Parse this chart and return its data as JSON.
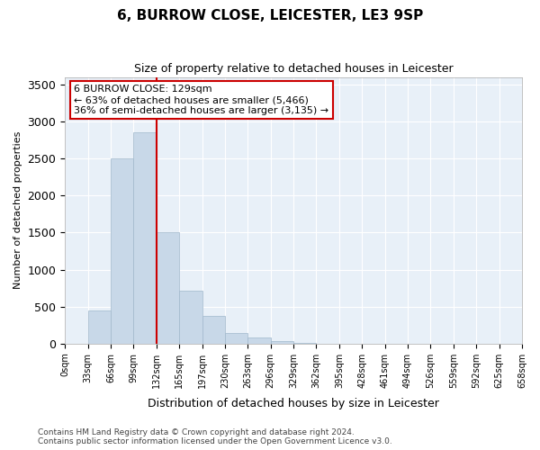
{
  "title": "6, BURROW CLOSE, LEICESTER, LE3 9SP",
  "subtitle": "Size of property relative to detached houses in Leicester",
  "xlabel": "Distribution of detached houses by size in Leicester",
  "ylabel": "Number of detached properties",
  "bar_color": "#c8d8e8",
  "bar_edge_color": "#a0b8cc",
  "vline_color": "#cc0000",
  "vline_x": 4,
  "annotation_title": "6 BURROW CLOSE: 129sqm",
  "annotation_line1": "← 63% of detached houses are smaller (5,466)",
  "annotation_line2": "36% of semi-detached houses are larger (3,135) →",
  "annotation_box_color": "#cc0000",
  "bins": [
    "0sqm",
    "33sqm",
    "66sqm",
    "99sqm",
    "132sqm",
    "165sqm",
    "197sqm",
    "230sqm",
    "263sqm",
    "296sqm",
    "329sqm",
    "362sqm",
    "395sqm",
    "428sqm",
    "461sqm",
    "494sqm",
    "526sqm",
    "559sqm",
    "592sqm",
    "625sqm",
    "658sqm"
  ],
  "values": [
    0,
    450,
    2500,
    2850,
    1500,
    720,
    380,
    145,
    85,
    40,
    5,
    2,
    0,
    0,
    0,
    0,
    0,
    0,
    0,
    0
  ],
  "ylim": [
    0,
    3600
  ],
  "yticks": [
    0,
    500,
    1000,
    1500,
    2000,
    2500,
    3000,
    3500
  ],
  "footer_line1": "Contains HM Land Registry data © Crown copyright and database right 2024.",
  "footer_line2": "Contains public sector information licensed under the Open Government Licence v3.0."
}
